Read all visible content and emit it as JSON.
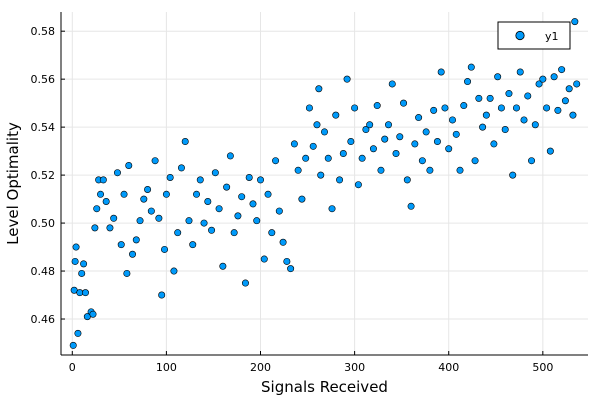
{
  "chart_data": {
    "type": "scatter",
    "title": "",
    "xlabel": "Signals Received",
    "ylabel": "Level Optimality",
    "xlim": [
      -12,
      548
    ],
    "ylim": [
      0.445,
      0.588
    ],
    "xticks": [
      0,
      100,
      200,
      300,
      400,
      500
    ],
    "yticks": [
      0.46,
      0.48,
      0.5,
      0.52,
      0.54,
      0.56,
      0.58
    ],
    "ytick_labels": [
      "0.46",
      "0.48",
      "0.50",
      "0.52",
      "0.54",
      "0.56",
      "0.58"
    ],
    "grid": true,
    "legend_position": "top-right",
    "series": [
      {
        "name": "y1",
        "color": "#009AFA",
        "marker": "circle",
        "description": "Noisy increasing trend with a jump near x=250",
        "trend_segments": [
          {
            "x_from": 0,
            "x_to": 25,
            "y_from": 0.462,
            "y_to": 0.49,
            "noise": 0.008
          },
          {
            "x_from": 25,
            "x_to": 250,
            "y_from": 0.498,
            "y_to": 0.51,
            "noise": 0.011
          },
          {
            "x_from": 250,
            "x_to": 540,
            "y_from": 0.528,
            "y_to": 0.552,
            "noise": 0.01
          }
        ],
        "points": [
          [
            1,
            0.449
          ],
          [
            2,
            0.472
          ],
          [
            3,
            0.484
          ],
          [
            4,
            0.49
          ],
          [
            6,
            0.454
          ],
          [
            8,
            0.471
          ],
          [
            10,
            0.479
          ],
          [
            12,
            0.483
          ],
          [
            14,
            0.471
          ],
          [
            16,
            0.461
          ],
          [
            20,
            0.463
          ],
          [
            22,
            0.462
          ],
          [
            24,
            0.498
          ],
          [
            26,
            0.506
          ],
          [
            28,
            0.518
          ],
          [
            30,
            0.512
          ],
          [
            33,
            0.518
          ],
          [
            36,
            0.509
          ],
          [
            40,
            0.498
          ],
          [
            44,
            0.502
          ],
          [
            48,
            0.521
          ],
          [
            52,
            0.491
          ],
          [
            55,
            0.512
          ],
          [
            58,
            0.479
          ],
          [
            60,
            0.524
          ],
          [
            64,
            0.487
          ],
          [
            68,
            0.493
          ],
          [
            72,
            0.501
          ],
          [
            76,
            0.51
          ],
          [
            80,
            0.514
          ],
          [
            84,
            0.505
          ],
          [
            88,
            0.526
          ],
          [
            92,
            0.502
          ],
          [
            95,
            0.47
          ],
          [
            98,
            0.489
          ],
          [
            100,
            0.512
          ],
          [
            104,
            0.519
          ],
          [
            108,
            0.48
          ],
          [
            112,
            0.496
          ],
          [
            116,
            0.523
          ],
          [
            120,
            0.534
          ],
          [
            124,
            0.501
          ],
          [
            128,
            0.491
          ],
          [
            132,
            0.512
          ],
          [
            136,
            0.518
          ],
          [
            140,
            0.5
          ],
          [
            144,
            0.509
          ],
          [
            148,
            0.497
          ],
          [
            152,
            0.521
          ],
          [
            156,
            0.506
          ],
          [
            160,
            0.482
          ],
          [
            164,
            0.515
          ],
          [
            168,
            0.528
          ],
          [
            172,
            0.496
          ],
          [
            176,
            0.503
          ],
          [
            180,
            0.511
          ],
          [
            184,
            0.475
          ],
          [
            188,
            0.519
          ],
          [
            192,
            0.508
          ],
          [
            196,
            0.501
          ],
          [
            200,
            0.518
          ],
          [
            204,
            0.485
          ],
          [
            208,
            0.512
          ],
          [
            212,
            0.496
          ],
          [
            216,
            0.526
          ],
          [
            220,
            0.505
          ],
          [
            224,
            0.492
          ],
          [
            228,
            0.484
          ],
          [
            232,
            0.481
          ],
          [
            236,
            0.533
          ],
          [
            240,
            0.522
          ],
          [
            244,
            0.51
          ],
          [
            248,
            0.527
          ],
          [
            252,
            0.548
          ],
          [
            256,
            0.532
          ],
          [
            260,
            0.541
          ],
          [
            262,
            0.556
          ],
          [
            264,
            0.52
          ],
          [
            268,
            0.538
          ],
          [
            272,
            0.527
          ],
          [
            276,
            0.506
          ],
          [
            280,
            0.545
          ],
          [
            284,
            0.518
          ],
          [
            288,
            0.529
          ],
          [
            292,
            0.56
          ],
          [
            296,
            0.534
          ],
          [
            300,
            0.548
          ],
          [
            304,
            0.516
          ],
          [
            308,
            0.527
          ],
          [
            312,
            0.539
          ],
          [
            316,
            0.541
          ],
          [
            320,
            0.531
          ],
          [
            324,
            0.549
          ],
          [
            328,
            0.522
          ],
          [
            332,
            0.535
          ],
          [
            336,
            0.541
          ],
          [
            340,
            0.558
          ],
          [
            344,
            0.529
          ],
          [
            348,
            0.536
          ],
          [
            352,
            0.55
          ],
          [
            356,
            0.518
          ],
          [
            360,
            0.507
          ],
          [
            364,
            0.533
          ],
          [
            368,
            0.544
          ],
          [
            372,
            0.526
          ],
          [
            376,
            0.538
          ],
          [
            380,
            0.522
          ],
          [
            384,
            0.547
          ],
          [
            388,
            0.534
          ],
          [
            392,
            0.563
          ],
          [
            396,
            0.548
          ],
          [
            400,
            0.531
          ],
          [
            404,
            0.543
          ],
          [
            408,
            0.537
          ],
          [
            412,
            0.522
          ],
          [
            416,
            0.549
          ],
          [
            420,
            0.559
          ],
          [
            424,
            0.565
          ],
          [
            428,
            0.526
          ],
          [
            432,
            0.552
          ],
          [
            436,
            0.54
          ],
          [
            440,
            0.545
          ],
          [
            444,
            0.552
          ],
          [
            448,
            0.533
          ],
          [
            452,
            0.561
          ],
          [
            456,
            0.548
          ],
          [
            460,
            0.539
          ],
          [
            464,
            0.554
          ],
          [
            468,
            0.52
          ],
          [
            472,
            0.548
          ],
          [
            476,
            0.563
          ],
          [
            480,
            0.543
          ],
          [
            484,
            0.553
          ],
          [
            488,
            0.526
          ],
          [
            492,
            0.541
          ],
          [
            496,
            0.558
          ],
          [
            500,
            0.56
          ],
          [
            504,
            0.548
          ],
          [
            508,
            0.53
          ],
          [
            512,
            0.561
          ],
          [
            516,
            0.547
          ],
          [
            520,
            0.564
          ],
          [
            524,
            0.551
          ],
          [
            528,
            0.556
          ],
          [
            532,
            0.545
          ],
          [
            534,
            0.584
          ],
          [
            536,
            0.558
          ]
        ]
      }
    ]
  }
}
